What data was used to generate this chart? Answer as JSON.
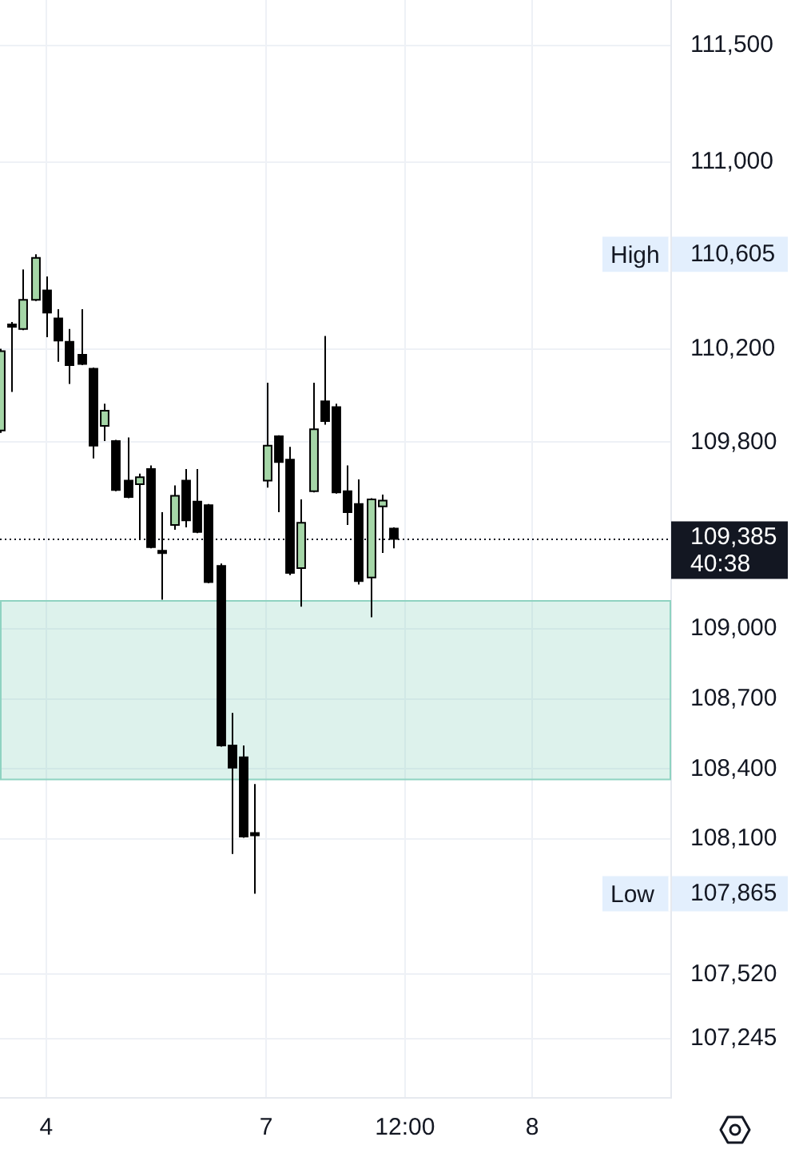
{
  "chart_data": {
    "type": "candlestick",
    "categories": [
      null,
      null,
      null,
      null,
      "4",
      null,
      null,
      null,
      null,
      null,
      null,
      null,
      null,
      null,
      null,
      null,
      null,
      null,
      null,
      null,
      null,
      null,
      null,
      "7",
      null,
      null,
      null,
      null,
      null,
      null,
      null,
      null,
      null,
      null,
      null,
      "12:00",
      null,
      null,
      null,
      null,
      null,
      null,
      null,
      null,
      null,
      null,
      "8",
      null,
      null,
      null,
      null,
      null,
      null,
      null,
      null,
      null,
      null,
      null,
      null
    ],
    "ohlc": [
      [
        109850,
        110200,
        109840,
        110190
      ],
      [
        110305,
        110315,
        110015,
        110300
      ],
      [
        110285,
        110540,
        110280,
        110410
      ],
      [
        110410,
        110605,
        110405,
        110590
      ],
      [
        110450,
        110510,
        110250,
        110355
      ],
      [
        110330,
        110370,
        110145,
        110235
      ],
      [
        110230,
        110285,
        110050,
        110130
      ],
      [
        110175,
        110370,
        110130,
        110135
      ],
      [
        110115,
        110120,
        109730,
        109785
      ],
      [
        109870,
        109965,
        109805,
        109935
      ],
      [
        109805,
        109810,
        109590,
        109595
      ],
      [
        109635,
        109820,
        109560,
        109565
      ],
      [
        109620,
        109665,
        109380,
        109650
      ],
      [
        109685,
        109700,
        109345,
        109350
      ],
      [
        109335,
        109500,
        109125,
        109330
      ],
      [
        109445,
        109615,
        109425,
        109570
      ],
      [
        109635,
        109685,
        109435,
        109465
      ],
      [
        109545,
        109685,
        109410,
        109415
      ],
      [
        109530,
        109535,
        109195,
        109200
      ],
      [
        109270,
        109280,
        108495,
        108500
      ],
      [
        108500,
        108640,
        108035,
        108405
      ],
      [
        108450,
        108500,
        108105,
        108110
      ],
      [
        108125,
        108335,
        107865,
        108120
      ],
      [
        109635,
        110055,
        109605,
        109785
      ],
      [
        109825,
        109830,
        109500,
        109715
      ],
      [
        109725,
        109780,
        109230,
        109240
      ],
      [
        109260,
        109555,
        109095,
        109455
      ],
      [
        109590,
        110055,
        109585,
        109855
      ],
      [
        109975,
        110255,
        109875,
        109890
      ],
      [
        109950,
        109965,
        109580,
        109585
      ],
      [
        109590,
        109700,
        109445,
        109500
      ],
      [
        109535,
        109640,
        109190,
        109205
      ],
      [
        109220,
        109560,
        109050,
        109555
      ],
      [
        109525,
        109575,
        109325,
        109550
      ],
      [
        109430,
        109435,
        109345,
        109385
      ],
      null,
      null,
      null,
      null,
      null,
      null,
      null,
      null,
      null,
      null,
      null,
      null,
      null,
      null,
      null,
      null,
      null,
      null,
      null,
      null,
      null,
      null,
      null,
      null
    ],
    "colors": [
      "#a5d6a7",
      "#000000",
      "#a5d6a7",
      "#a5d6a7",
      "#000000",
      "#000000",
      "#000000",
      "#000000",
      "#000000",
      "#a5d6a7",
      "#000000",
      "#000000",
      "#a5d6a7",
      "#000000",
      "#000000",
      "#a5d6a7",
      "#000000",
      "#000000",
      "#000000",
      "#000000",
      "#000000",
      "#000000",
      "#000000",
      "#a5d6a7",
      "#000000",
      "#000000",
      "#a5d6a7",
      "#a5d6a7",
      "#000000",
      "#000000",
      "#000000",
      "#000000",
      "#a5d6a7",
      "#a5d6a7",
      "#000000",
      null,
      null,
      null,
      null,
      null,
      null,
      null,
      null,
      null,
      null,
      null,
      null,
      null,
      null,
      null,
      null,
      null,
      null,
      null,
      null,
      null,
      null,
      null,
      null
    ],
    "ylim": [
      106990,
      111695
    ],
    "yticks": [
      {
        "value": 111500,
        "label": "111,500"
      },
      {
        "value": 111000,
        "label": "111,000"
      },
      {
        "value": 110605,
        "label": "110,605"
      },
      {
        "value": 110200,
        "label": "110,200"
      },
      {
        "value": 109800,
        "label": "109,800"
      },
      {
        "value": 109000,
        "label": "109,000"
      },
      {
        "value": 108700,
        "label": "108,700"
      },
      {
        "value": 108400,
        "label": "108,400"
      },
      {
        "value": 108100,
        "label": "108,100"
      },
      {
        "value": 107865,
        "label": "107,865"
      },
      {
        "value": 107520,
        "label": "107,520"
      },
      {
        "value": 107245,
        "label": "107,245"
      }
    ],
    "ref_lines": [
      {
        "axis": "y",
        "value": 109385,
        "label": "109,385\n40:38",
        "line_style": "dotted",
        "color": "#131722"
      }
    ],
    "bands": [
      {
        "axis": "y",
        "from": 108355,
        "to": 109120,
        "color": "#8fd3c1"
      }
    ],
    "annotations": [
      "High",
      "Low"
    ],
    "grid": true
  }
}
